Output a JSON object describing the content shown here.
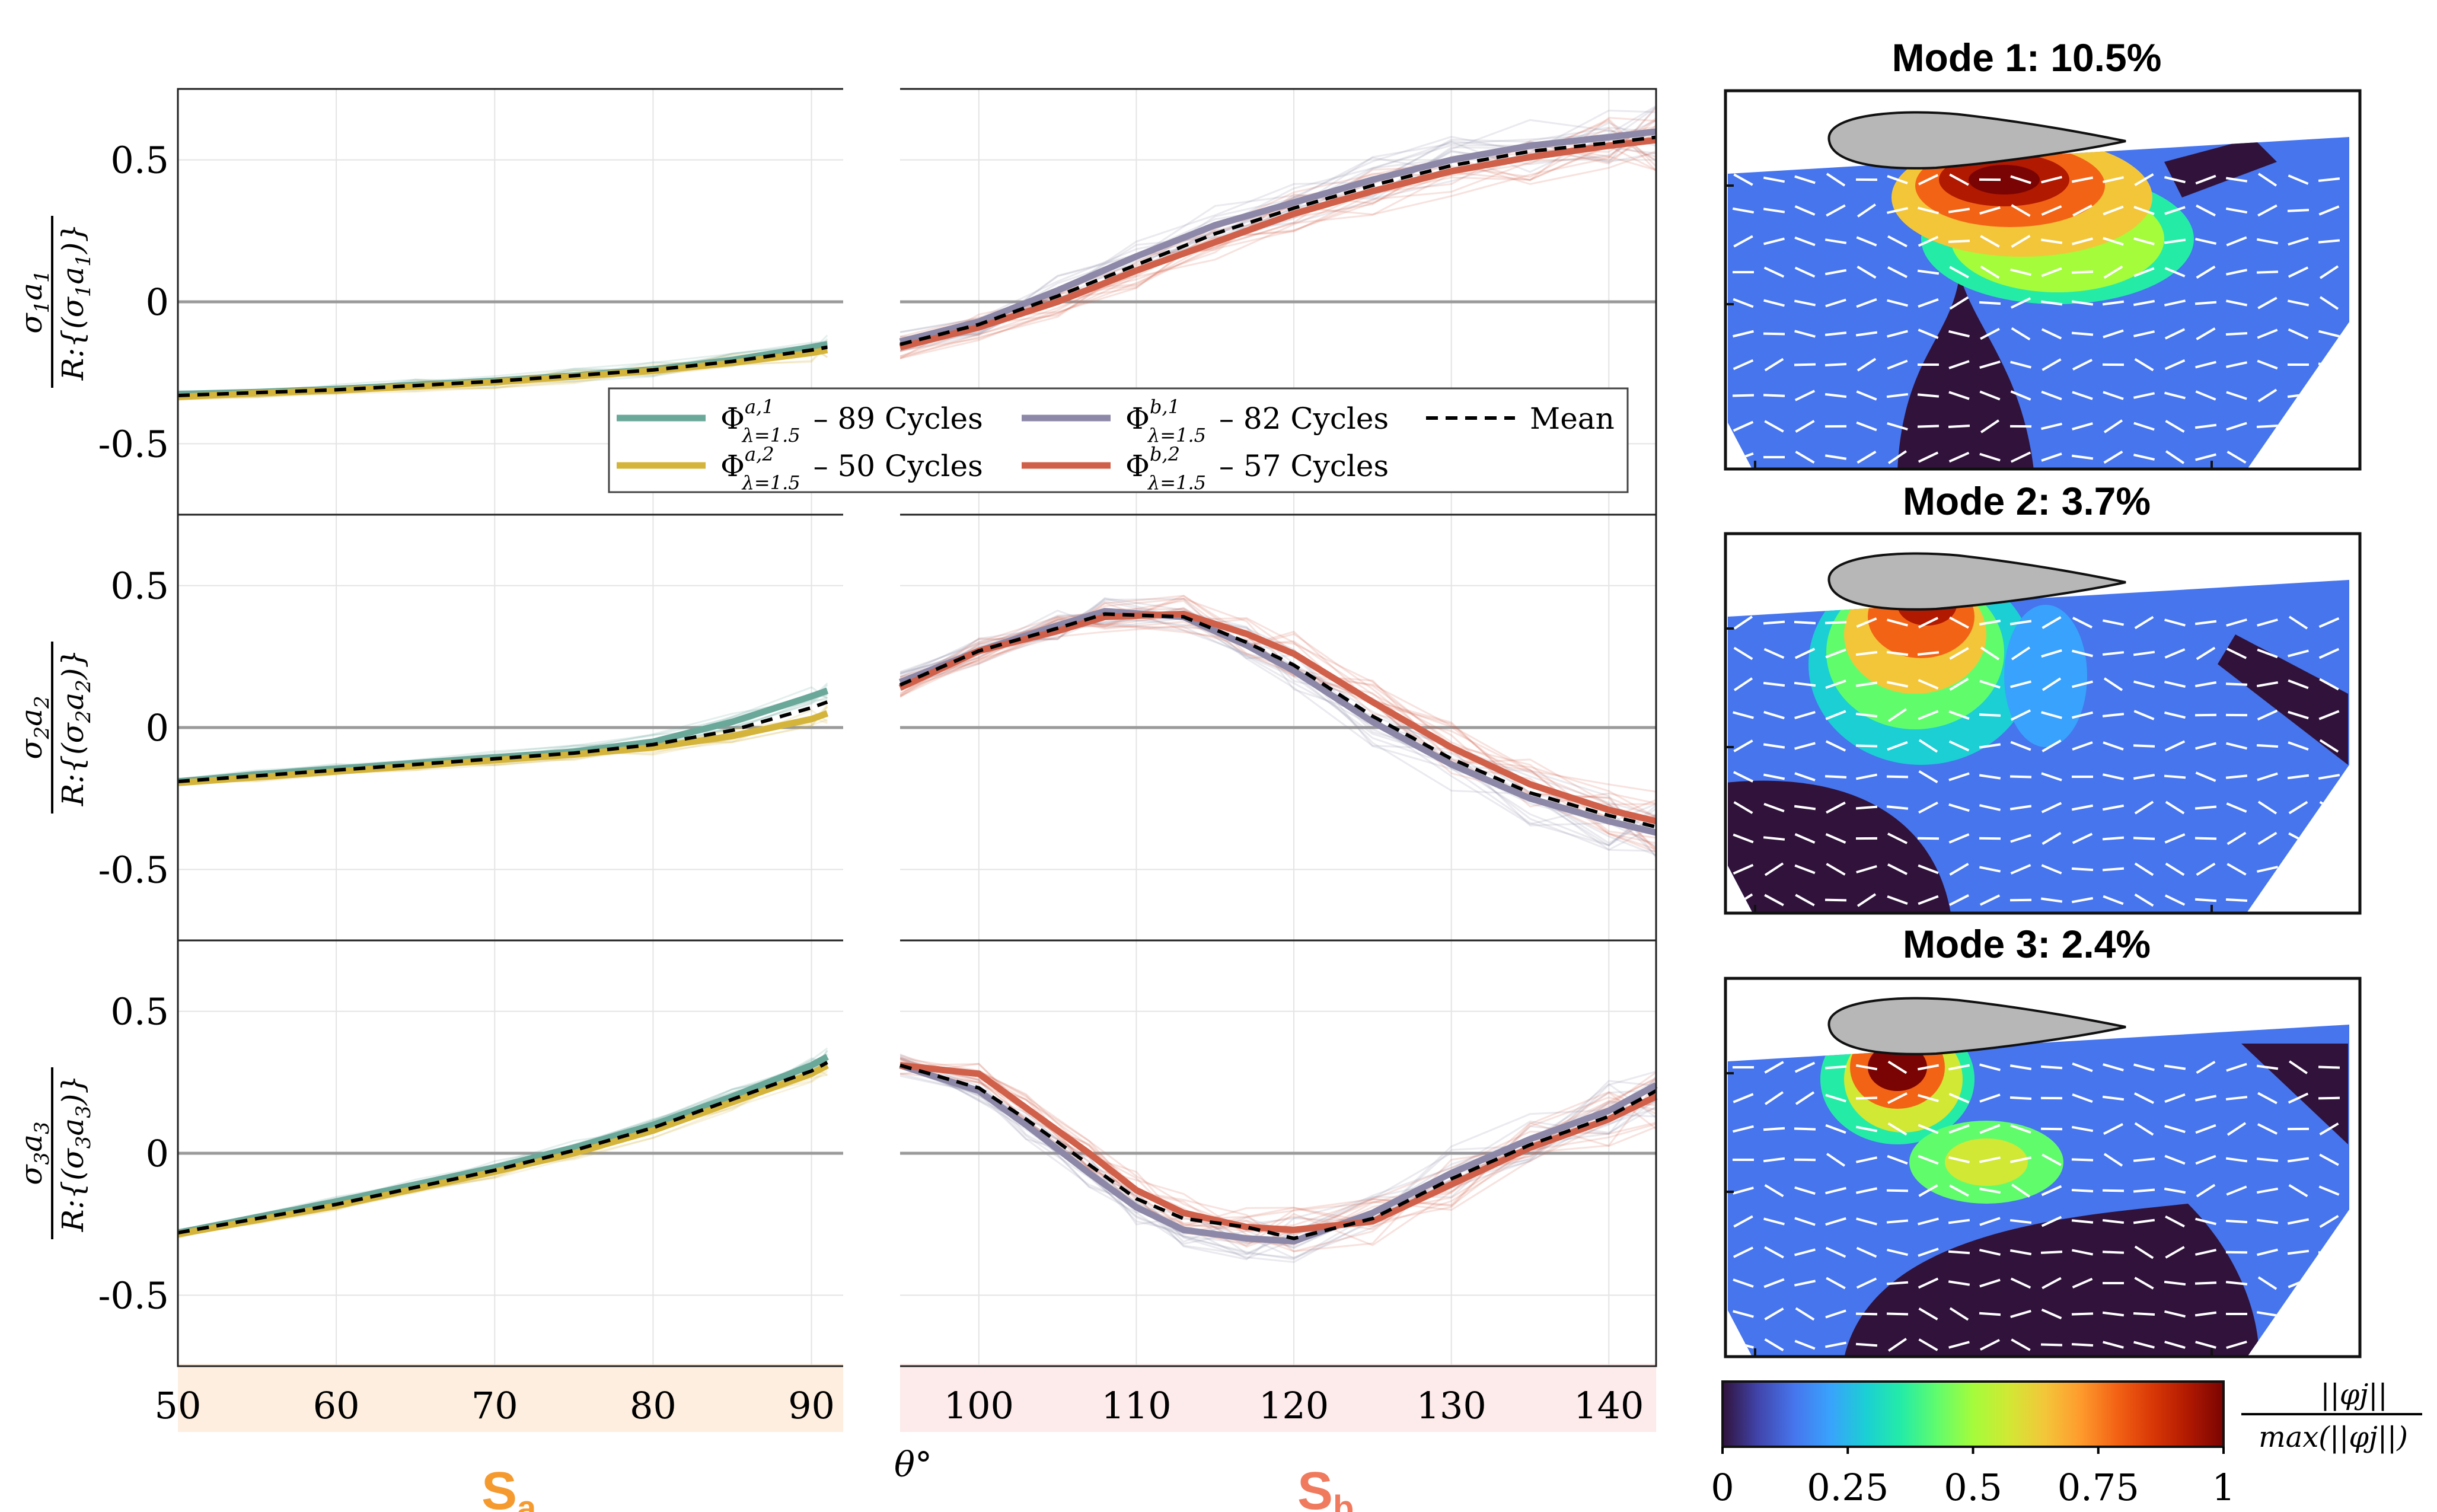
{
  "chart_data": {
    "type": "line",
    "xaxis": {
      "label": "θ°",
      "ticks": [
        50,
        60,
        70,
        80,
        90,
        100,
        110,
        120,
        130,
        140
      ],
      "xlim": [
        50,
        143
      ],
      "gap": [
        92,
        95
      ],
      "segment_a_label": "S",
      "segment_a_sub": "a",
      "segment_b_label": "S",
      "segment_b_sub": "b"
    },
    "yaxis": {
      "ylim": [
        -0.75,
        0.75
      ],
      "ticks": [
        0.5,
        0,
        -0.5
      ],
      "tick_labels": [
        "0.5",
        "0",
        "-0.5"
      ]
    },
    "legend": {
      "placement": "inside, lower-right of top panel",
      "entries": [
        {
          "symbol": "Φ",
          "sup": "a,1",
          "sub": "λ=1.5",
          "text": "– 89 Cycles",
          "color": "#6aa89a",
          "style": "solid"
        },
        {
          "symbol": "Φ",
          "sup": "a,2",
          "sub": "λ=1.5",
          "text": "– 50 Cycles",
          "color": "#d4b43a",
          "style": "solid"
        },
        {
          "symbol": "Φ",
          "sup": "b,1",
          "sub": "λ=1.5",
          "text": "– 82 Cycles",
          "color": "#8d88a8",
          "style": "solid"
        },
        {
          "symbol": "Φ",
          "sup": "b,2",
          "sub": "λ=1.5",
          "text": "– 57 Cycles",
          "color": "#d0604a",
          "style": "solid"
        },
        {
          "text": "Mean",
          "color": "#000000",
          "style": "dashed"
        }
      ]
    },
    "panels": [
      {
        "ylabel_num": "σ1a1",
        "ylabel_num_main": "σ",
        "ylabel_num_sub1": "1",
        "ylabel_num_a": "a",
        "ylabel_num_sub2": "1",
        "ylabel_den": "R:{(σ1a1)}",
        "ylabel_den_pre": "R:{(σ",
        "ylabel_den_sub1": "1",
        "ylabel_den_a": "a",
        "ylabel_den_sub2": "1",
        "ylabel_den_post": ")}",
        "x_a": [
          50,
          55,
          60,
          65,
          70,
          75,
          80,
          85,
          90,
          91
        ],
        "mean_a": [
          -0.33,
          -0.32,
          -0.31,
          -0.295,
          -0.28,
          -0.26,
          -0.24,
          -0.21,
          -0.17,
          -0.16
        ],
        "series_a1": [
          -0.325,
          -0.318,
          -0.307,
          -0.293,
          -0.278,
          -0.26,
          -0.238,
          -0.205,
          -0.16,
          -0.15
        ],
        "series_a2": [
          -0.335,
          -0.322,
          -0.312,
          -0.298,
          -0.283,
          -0.263,
          -0.243,
          -0.215,
          -0.18,
          -0.17
        ],
        "x_b": [
          95,
          100,
          105,
          110,
          115,
          120,
          125,
          130,
          135,
          140,
          143
        ],
        "mean_b": [
          -0.15,
          -0.08,
          0.02,
          0.13,
          0.24,
          0.33,
          0.41,
          0.48,
          0.53,
          0.56,
          0.58
        ],
        "series_b1": [
          -0.14,
          -0.07,
          0.04,
          0.16,
          0.27,
          0.35,
          0.43,
          0.5,
          0.55,
          0.58,
          0.6
        ],
        "series_b2": [
          -0.16,
          -0.09,
          0.0,
          0.11,
          0.21,
          0.31,
          0.39,
          0.46,
          0.51,
          0.55,
          0.57
        ]
      },
      {
        "ylabel_num": "σ2a2",
        "ylabel_num_main": "σ",
        "ylabel_num_sub1": "2",
        "ylabel_num_a": "a",
        "ylabel_num_sub2": "2",
        "ylabel_den": "R:{(σ2a2)}",
        "ylabel_den_pre": "R:{(σ",
        "ylabel_den_sub1": "2",
        "ylabel_den_a": "a",
        "ylabel_den_sub2": "2",
        "ylabel_den_post": ")}",
        "x_a": [
          50,
          55,
          60,
          65,
          70,
          75,
          80,
          85,
          90,
          91
        ],
        "mean_a": [
          -0.19,
          -0.17,
          -0.15,
          -0.13,
          -0.11,
          -0.09,
          -0.06,
          -0.01,
          0.07,
          0.09
        ],
        "series_a1": [
          -0.19,
          -0.165,
          -0.145,
          -0.125,
          -0.105,
          -0.085,
          -0.05,
          0.02,
          0.11,
          0.13
        ],
        "series_a2": [
          -0.195,
          -0.175,
          -0.155,
          -0.135,
          -0.115,
          -0.095,
          -0.07,
          -0.03,
          0.03,
          0.05
        ],
        "x_b": [
          95,
          100,
          105,
          108,
          113,
          117,
          120,
          125,
          130,
          135,
          140,
          143
        ],
        "mean_b": [
          0.15,
          0.27,
          0.35,
          0.4,
          0.39,
          0.3,
          0.22,
          0.04,
          -0.11,
          -0.23,
          -0.31,
          -0.35
        ],
        "series_b1": [
          0.16,
          0.27,
          0.36,
          0.41,
          0.39,
          0.29,
          0.2,
          0.02,
          -0.13,
          -0.25,
          -0.33,
          -0.37
        ],
        "series_b2": [
          0.14,
          0.27,
          0.34,
          0.39,
          0.4,
          0.33,
          0.26,
          0.09,
          -0.07,
          -0.2,
          -0.29,
          -0.33
        ]
      },
      {
        "ylabel_num": "σ3a3",
        "ylabel_num_main": "σ",
        "ylabel_num_sub1": "3",
        "ylabel_num_a": "a",
        "ylabel_num_sub2": "3",
        "ylabel_den": "R:{(σ3a3)}",
        "ylabel_den_pre": "R:{(σ",
        "ylabel_den_sub1": "3",
        "ylabel_den_a": "a",
        "ylabel_den_sub2": "3",
        "ylabel_den_post": ")}",
        "x_a": [
          50,
          55,
          60,
          65,
          70,
          75,
          80,
          85,
          90,
          91
        ],
        "mean_a": [
          -0.28,
          -0.23,
          -0.18,
          -0.12,
          -0.06,
          0.01,
          0.09,
          0.19,
          0.29,
          0.32
        ],
        "series_a1": [
          -0.28,
          -0.225,
          -0.17,
          -0.11,
          -0.05,
          0.02,
          0.1,
          0.2,
          0.31,
          0.34
        ],
        "series_a2": [
          -0.285,
          -0.235,
          -0.185,
          -0.125,
          -0.065,
          0.0,
          0.08,
          0.18,
          0.28,
          0.31
        ],
        "x_b": [
          95,
          100,
          103,
          107,
          110,
          113,
          117,
          120,
          125,
          130,
          135,
          140,
          143
        ],
        "mean_b": [
          0.31,
          0.23,
          0.12,
          -0.04,
          -0.16,
          -0.23,
          -0.26,
          -0.3,
          -0.23,
          -0.09,
          0.03,
          0.13,
          0.22
        ],
        "series_b1": [
          0.31,
          0.22,
          0.1,
          -0.07,
          -0.19,
          -0.27,
          -0.3,
          -0.31,
          -0.21,
          -0.07,
          0.05,
          0.15,
          0.24
        ],
        "series_b2": [
          0.31,
          0.28,
          0.16,
          0.0,
          -0.13,
          -0.21,
          -0.26,
          -0.27,
          -0.24,
          -0.11,
          0.02,
          0.12,
          0.2
        ]
      }
    ]
  },
  "modes": [
    {
      "title": "Mode 1: 10.5%"
    },
    {
      "title": "Mode 2: 3.7%"
    },
    {
      "title": "Mode 3: 2.4%"
    }
  ],
  "colorbar": {
    "ticks": [
      "0",
      "0.25",
      "0.5",
      "0.75",
      "1"
    ],
    "label_num": "||φj||",
    "label_den": "max(||φj||)",
    "colors": [
      "#30123b",
      "#4145ab",
      "#4675ed",
      "#39a2fc",
      "#1bcfd4",
      "#24eca6",
      "#61fc6c",
      "#a4fc3b",
      "#d1e834",
      "#f3c63a",
      "#fe9b2d",
      "#f36315",
      "#d93806",
      "#b11901",
      "#7a0403"
    ]
  }
}
